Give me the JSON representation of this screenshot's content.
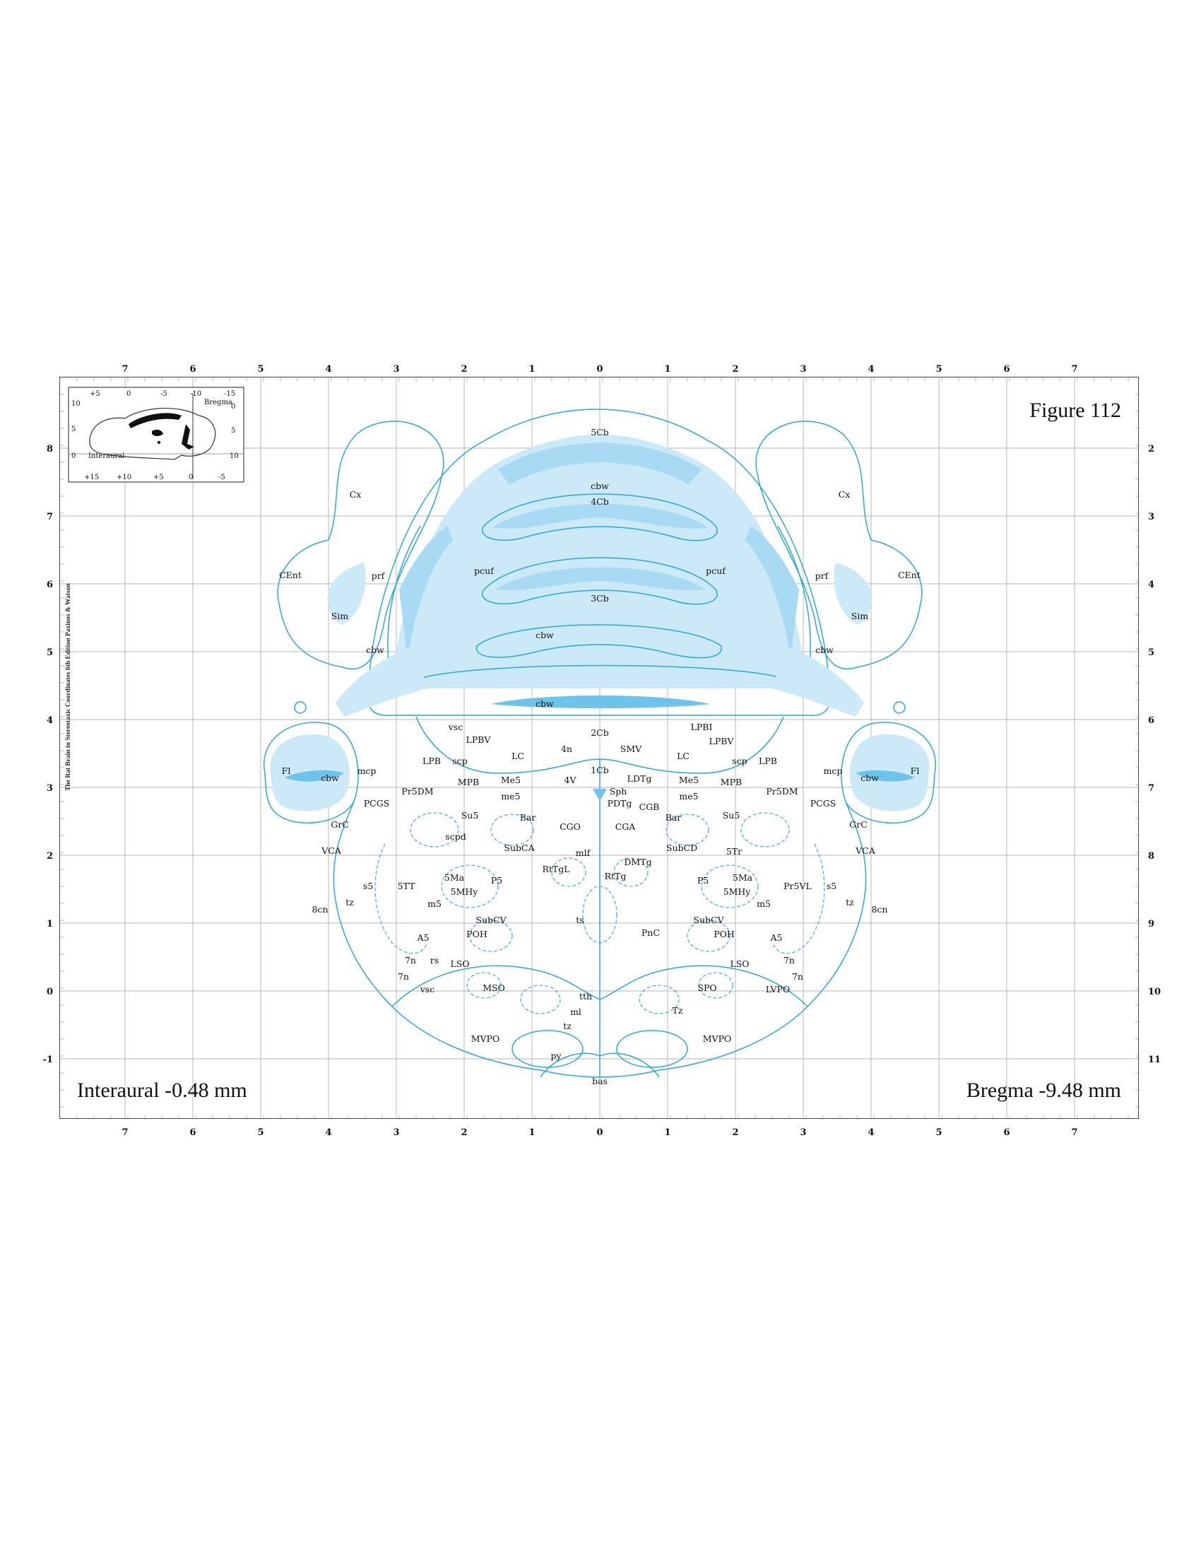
{
  "figure": {
    "title": "Figure 112",
    "interaural": "Interaural -0.48 mm",
    "bregma": "Bregma -9.48 mm",
    "vertical_credit": "The Rat Brain in Stereotaxic Coordinates 6th Edition Paxinos & Watson"
  },
  "colors": {
    "outline": "#2aa7dc",
    "light_fill": "#cce9f8",
    "mid_fill": "#a8daf3",
    "dark_fill": "#6ec3ec",
    "grid": "#9a9a9a"
  },
  "axes": {
    "top_ticks": [
      "7",
      "6",
      "5",
      "4",
      "3",
      "2",
      "1",
      "0",
      "1",
      "2",
      "3",
      "4",
      "5",
      "6",
      "7"
    ],
    "bottom_ticks": [
      "7",
      "6",
      "5",
      "4",
      "3",
      "2",
      "1",
      "0",
      "1",
      "2",
      "3",
      "4",
      "5",
      "6",
      "7"
    ],
    "left_ticks": [
      "8",
      "7",
      "6",
      "5",
      "4",
      "3",
      "2",
      "1",
      "0",
      "-1"
    ],
    "right_ticks": [
      "2",
      "3",
      "4",
      "5",
      "6",
      "7",
      "8",
      "9",
      "10",
      "11"
    ]
  },
  "inset": {
    "top_ticks": [
      "+5",
      "0",
      "-5",
      "-10",
      "-15"
    ],
    "bottom_ticks": [
      "+15",
      "+10",
      "+5",
      "0",
      "-5"
    ],
    "left_ticks": [
      "10",
      "5",
      "0"
    ],
    "right_ticks": [
      "0",
      "5",
      "10"
    ],
    "label_interaural": "Interaural",
    "label_bregma": "Bregma"
  },
  "labels": [
    "5Cb",
    "cbw",
    "4Cb",
    "pcuf",
    "pcuf",
    "3Cb",
    "cbw",
    "cbw",
    "2Cb",
    "Cx",
    "Cx",
    "CEnt",
    "CEnt",
    "prf",
    "prf",
    "Sim",
    "Sim",
    "cbw",
    "cbw",
    "Fl",
    "Fl",
    "cbw",
    "cbw",
    "mcp",
    "mcp",
    "vsc",
    "LPBV",
    "LPBI",
    "LPBV",
    "LPB",
    "LPB",
    "scp",
    "scp",
    "4n",
    "SMV",
    "LC",
    "LC",
    "1Cb",
    "4V",
    "Me5",
    "Me5",
    "MPB",
    "MPB",
    "LDTg",
    "Sph",
    "PDTg",
    "me5",
    "me5",
    "Pr5DM",
    "Pr5DM",
    "PCGS",
    "PCGS",
    "Su5",
    "Su5",
    "Bar",
    "Bar",
    "CGB",
    "CGO",
    "CGA",
    "GrC",
    "GrC",
    "scpd",
    "SubCA",
    "SubCD",
    "VCA",
    "VCA",
    "mlf",
    "DMTg",
    "5Tr",
    "RtTgL",
    "RtTg",
    "5Ma",
    "5Ma",
    "s5",
    "s5",
    "5TT",
    "P5",
    "P5",
    "Pr5VL",
    "5MHy",
    "5MHy",
    "tz",
    "tz",
    "m5",
    "m5",
    "8cn",
    "8cn",
    "ts",
    "SubCV",
    "SubCV",
    "PnC",
    "A5",
    "A5",
    "POH",
    "POH",
    "7n",
    "7n",
    "rs",
    "LSO",
    "LSO",
    "7n",
    "7n",
    "vsc",
    "MSO",
    "SPO",
    "LVPO",
    "tth",
    "ml",
    "tz",
    "Tz",
    "MVPO",
    "MVPO",
    "py",
    "bas"
  ]
}
